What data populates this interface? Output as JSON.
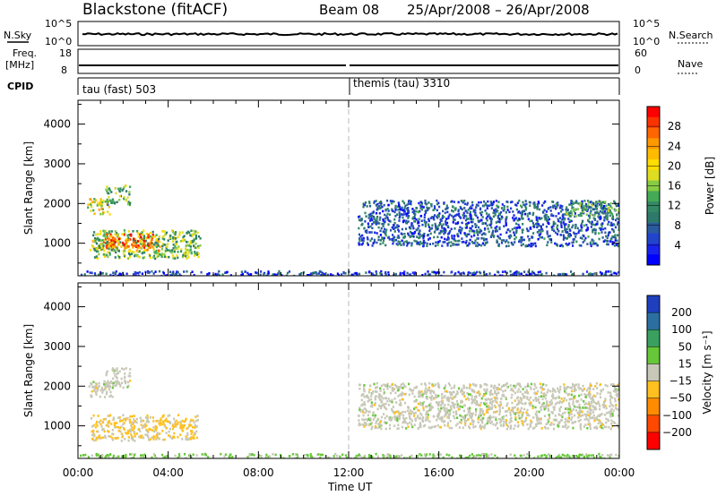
{
  "header": {
    "station": "Blackstone (fitACF)",
    "beam": "Beam 08",
    "dates": "25/Apr/2008 – 26/Apr/2008"
  },
  "summary": {
    "nsky_label": "N.Sky",
    "nsky_ticks": [
      "10^5",
      "10^0"
    ],
    "nsearch_label": "N.Search",
    "nsearch_ticks": [
      "10^5",
      "10^0"
    ],
    "freq_label": "Freq.",
    "freq_unit": "[MHz]",
    "freq_ticks": [
      "18",
      "8"
    ],
    "nave_label": "Nave",
    "nave_ticks": [
      "60",
      "0"
    ],
    "cpid_label": "CPID",
    "cpid_segments": [
      "tau (fast) 503",
      "themis (tau) 3310"
    ]
  },
  "chart_data": [
    {
      "type": "heatmap",
      "panel": "power",
      "ylabel": "Slant Range [km]",
      "ylim": [
        180,
        4600
      ],
      "yticks": [
        "4000",
        "3000",
        "2000",
        "1000"
      ],
      "xlim_hours": [
        0,
        24
      ],
      "xtick_labels": [
        "00:00",
        "04:00",
        "08:00",
        "12:00",
        "16:00",
        "20:00",
        "00:00"
      ],
      "colorbar": {
        "label": "Power [dB]",
        "ticks": [
          "28",
          "24",
          "20",
          "16",
          "12",
          "8",
          "4"
        ],
        "colors": [
          "#ff0000",
          "#ff3300",
          "#ff6600",
          "#ff9900",
          "#ffbb00",
          "#ffdd00",
          "#dddd22",
          "#88cc44",
          "#44aa55",
          "#338866",
          "#2e7a6a",
          "#2a5aa0",
          "#2244cc",
          "#1a22ee",
          "#0000ff"
        ]
      },
      "regions": [
        {
          "t0": 0.4,
          "t1": 3.6,
          "r0": 820,
          "r1": 1150,
          "v": 22
        },
        {
          "t0": 0.6,
          "t1": 5.4,
          "r0": 640,
          "r1": 1350,
          "v": 14
        },
        {
          "t0": 1.2,
          "t1": 3.3,
          "r0": 900,
          "r1": 1250,
          "v": 26
        },
        {
          "t0": 0.4,
          "t1": 1.4,
          "r0": 1750,
          "r1": 2150,
          "v": 18
        },
        {
          "t0": 1.2,
          "t1": 2.3,
          "r0": 1980,
          "r1": 2480,
          "v": 12
        },
        {
          "t0": 12.4,
          "t1": 24.0,
          "r0": 950,
          "r1": 2100,
          "v": 6
        },
        {
          "t0": 21.6,
          "t1": 24.0,
          "r0": 1700,
          "r1": 2100,
          "v": 12
        },
        {
          "t0": 0.0,
          "t1": 24.0,
          "r0": 200,
          "r1": 320,
          "v": 4
        }
      ]
    },
    {
      "type": "heatmap",
      "panel": "velocity",
      "ylabel": "Slant Range [km]",
      "ylim": [
        180,
        4600
      ],
      "yticks": [
        "4000",
        "3000",
        "2000",
        "1000"
      ],
      "xlim_hours": [
        0,
        24
      ],
      "xtick_labels": [
        "00:00",
        "04:00",
        "08:00",
        "12:00",
        "16:00",
        "20:00",
        "00:00"
      ],
      "xlabel": "Time UT",
      "colorbar": {
        "label": "Velocity [m s⁻¹]",
        "ticks": [
          "200",
          "100",
          "50",
          "15",
          "−15",
          "−50",
          "−100",
          "−200"
        ],
        "colors": [
          "#1f3fbf",
          "#2b6fa0",
          "#3aa060",
          "#66c838",
          "#c8c8b8",
          "#ffc020",
          "#ff8c00",
          "#ff4800",
          "#ff0000"
        ]
      },
      "regions": [
        {
          "t0": 0.5,
          "t1": 5.3,
          "r0": 650,
          "r1": 1300,
          "v": -30
        },
        {
          "t0": 0.4,
          "t1": 1.5,
          "r0": 1750,
          "r1": 2150,
          "v": 0
        },
        {
          "t0": 1.2,
          "t1": 2.3,
          "r0": 1980,
          "r1": 2480,
          "v": 0
        },
        {
          "t0": 12.4,
          "t1": 24.0,
          "r0": 950,
          "r1": 2100,
          "v": 0
        },
        {
          "t0": 0.0,
          "t1": 24.0,
          "r0": 200,
          "r1": 320,
          "v": 40
        }
      ]
    }
  ]
}
